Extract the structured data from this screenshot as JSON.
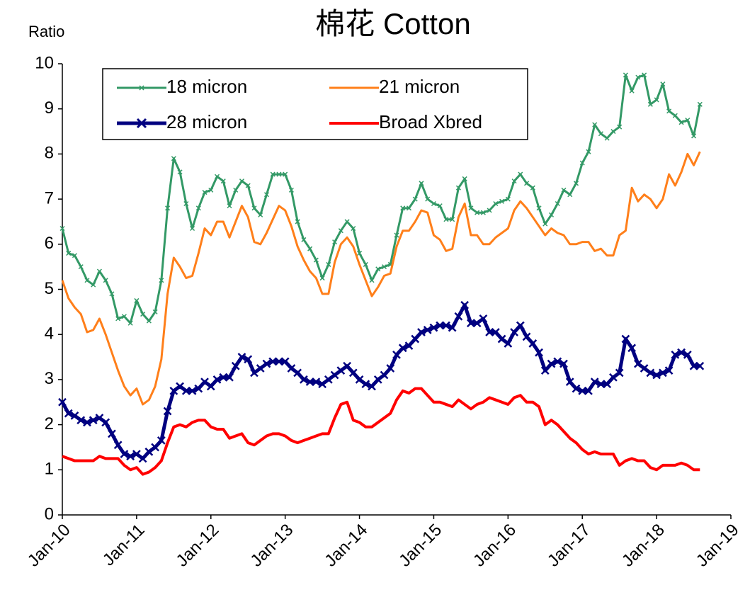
{
  "chart_data": {
    "type": "line",
    "title": "棉花 Cotton",
    "y_label": "Ratio",
    "x": [
      "2010-01",
      "2010-02",
      "2010-03",
      "2010-04",
      "2010-05",
      "2010-06",
      "2010-07",
      "2010-08",
      "2010-09",
      "2010-10",
      "2010-11",
      "2010-12",
      "2011-01",
      "2011-02",
      "2011-03",
      "2011-04",
      "2011-05",
      "2011-06",
      "2011-07",
      "2011-08",
      "2011-09",
      "2011-10",
      "2011-11",
      "2011-12",
      "2012-01",
      "2012-02",
      "2012-03",
      "2012-04",
      "2012-05",
      "2012-06",
      "2012-07",
      "2012-08",
      "2012-09",
      "2012-10",
      "2012-11",
      "2012-12",
      "2013-01",
      "2013-02",
      "2013-03",
      "2013-04",
      "2013-05",
      "2013-06",
      "2013-07",
      "2013-08",
      "2013-09",
      "2013-10",
      "2013-11",
      "2013-12",
      "2014-01",
      "2014-02",
      "2014-03",
      "2014-04",
      "2014-05",
      "2014-06",
      "2014-07",
      "2014-08",
      "2014-09",
      "2014-10",
      "2014-11",
      "2014-12",
      "2015-01",
      "2015-02",
      "2015-03",
      "2015-04",
      "2015-05",
      "2015-06",
      "2015-07",
      "2015-08",
      "2015-09",
      "2015-10",
      "2015-11",
      "2015-12",
      "2016-01",
      "2016-02",
      "2016-03",
      "2016-04",
      "2016-05",
      "2016-06",
      "2016-07",
      "2016-08",
      "2016-09",
      "2016-10",
      "2016-11",
      "2016-12",
      "2017-01",
      "2017-02",
      "2017-03",
      "2017-04",
      "2017-05",
      "2017-06",
      "2017-07",
      "2017-08",
      "2017-09",
      "2017-10",
      "2017-11",
      "2017-12",
      "2018-01",
      "2018-02",
      "2018-03",
      "2018-04",
      "2018-05",
      "2018-06",
      "2018-07",
      "2018-08"
    ],
    "series": [
      {
        "name": "18 micron",
        "color": "#339966",
        "marker": "x",
        "linewidth": 3,
        "values": [
          6.35,
          5.8,
          5.75,
          5.5,
          5.2,
          5.1,
          5.4,
          5.2,
          4.9,
          4.35,
          4.4,
          4.25,
          4.75,
          4.45,
          4.3,
          4.5,
          5.2,
          6.8,
          7.9,
          7.6,
          6.9,
          6.35,
          6.8,
          7.15,
          7.2,
          7.5,
          7.4,
          6.85,
          7.2,
          7.4,
          7.3,
          6.8,
          6.65,
          7.1,
          7.55,
          7.55,
          7.55,
          7.2,
          6.5,
          6.1,
          5.9,
          5.65,
          5.25,
          5.55,
          6.05,
          6.3,
          6.5,
          6.35,
          5.8,
          5.55,
          5.2,
          5.45,
          5.5,
          5.55,
          6.2,
          6.8,
          6.8,
          7.0,
          7.35,
          7.0,
          6.9,
          6.85,
          6.55,
          6.55,
          7.25,
          7.45,
          6.8,
          6.7,
          6.7,
          6.75,
          6.9,
          6.95,
          7.0,
          7.4,
          7.55,
          7.35,
          7.25,
          6.8,
          6.45,
          6.65,
          6.9,
          7.2,
          7.1,
          7.35,
          7.8,
          8.05,
          8.65,
          8.45,
          8.35,
          8.5,
          8.6,
          9.75,
          9.4,
          9.7,
          9.75,
          9.1,
          9.2,
          9.55,
          8.95,
          8.85,
          8.7,
          8.75,
          8.4,
          9.1
        ]
      },
      {
        "name": "21 micron",
        "color": "#ff7f1a",
        "marker": "none",
        "linewidth": 3,
        "values": [
          5.2,
          4.8,
          4.6,
          4.45,
          4.05,
          4.1,
          4.35,
          4.0,
          3.6,
          3.2,
          2.85,
          2.65,
          2.8,
          2.45,
          2.55,
          2.85,
          3.45,
          4.9,
          5.7,
          5.5,
          5.25,
          5.3,
          5.8,
          6.35,
          6.2,
          6.5,
          6.5,
          6.15,
          6.5,
          6.85,
          6.6,
          6.05,
          6.0,
          6.25,
          6.55,
          6.85,
          6.75,
          6.4,
          5.95,
          5.65,
          5.4,
          5.25,
          4.9,
          4.9,
          5.6,
          6.0,
          6.15,
          5.95,
          5.55,
          5.2,
          4.85,
          5.05,
          5.3,
          5.35,
          5.95,
          6.3,
          6.3,
          6.5,
          6.75,
          6.7,
          6.2,
          6.1,
          5.85,
          5.9,
          6.6,
          6.9,
          6.2,
          6.2,
          6.0,
          6.0,
          6.15,
          6.25,
          6.35,
          6.75,
          6.95,
          6.8,
          6.6,
          6.4,
          6.2,
          6.35,
          6.25,
          6.2,
          6.0,
          6.0,
          6.05,
          6.05,
          5.85,
          5.9,
          5.75,
          5.75,
          6.2,
          6.3,
          7.25,
          6.95,
          7.1,
          7.0,
          6.8,
          7.0,
          7.55,
          7.3,
          7.6,
          8.0,
          7.75,
          8.05
        ]
      },
      {
        "name": "28 micron",
        "color": "#000080",
        "marker": "x",
        "linewidth": 5,
        "values": [
          2.5,
          2.25,
          2.2,
          2.1,
          2.05,
          2.1,
          2.15,
          2.05,
          1.8,
          1.55,
          1.35,
          1.3,
          1.35,
          1.25,
          1.4,
          1.5,
          1.65,
          2.3,
          2.75,
          2.85,
          2.75,
          2.75,
          2.8,
          2.95,
          2.85,
          3.0,
          3.05,
          3.05,
          3.3,
          3.5,
          3.45,
          3.15,
          3.25,
          3.35,
          3.4,
          3.4,
          3.4,
          3.25,
          3.15,
          3.0,
          2.95,
          2.95,
          2.9,
          3.0,
          3.1,
          3.2,
          3.3,
          3.15,
          3.0,
          2.9,
          2.85,
          3.0,
          3.1,
          3.25,
          3.55,
          3.7,
          3.75,
          3.9,
          4.05,
          4.1,
          4.15,
          4.2,
          4.2,
          4.15,
          4.4,
          4.65,
          4.25,
          4.25,
          4.35,
          4.05,
          4.05,
          3.9,
          3.8,
          4.05,
          4.2,
          3.95,
          3.8,
          3.6,
          3.2,
          3.35,
          3.4,
          3.35,
          2.95,
          2.8,
          2.75,
          2.75,
          2.95,
          2.9,
          2.9,
          3.05,
          3.15,
          3.9,
          3.7,
          3.35,
          3.25,
          3.15,
          3.1,
          3.15,
          3.2,
          3.55,
          3.6,
          3.55,
          3.3,
          3.3
        ]
      },
      {
        "name": "Broad Xbred",
        "color": "#ff0000",
        "marker": "none",
        "linewidth": 4,
        "values": [
          1.3,
          1.25,
          1.2,
          1.2,
          1.2,
          1.2,
          1.3,
          1.25,
          1.25,
          1.25,
          1.1,
          1.0,
          1.05,
          0.9,
          0.95,
          1.05,
          1.2,
          1.6,
          1.95,
          2.0,
          1.95,
          2.05,
          2.1,
          2.1,
          1.95,
          1.9,
          1.9,
          1.7,
          1.75,
          1.8,
          1.6,
          1.55,
          1.65,
          1.75,
          1.8,
          1.8,
          1.75,
          1.65,
          1.6,
          1.65,
          1.7,
          1.75,
          1.8,
          1.8,
          2.15,
          2.45,
          2.5,
          2.1,
          2.05,
          1.95,
          1.95,
          2.05,
          2.15,
          2.25,
          2.55,
          2.75,
          2.7,
          2.8,
          2.8,
          2.65,
          2.5,
          2.5,
          2.45,
          2.4,
          2.55,
          2.45,
          2.35,
          2.45,
          2.5,
          2.6,
          2.55,
          2.5,
          2.45,
          2.6,
          2.65,
          2.5,
          2.5,
          2.4,
          2.0,
          2.1,
          2.0,
          1.85,
          1.7,
          1.6,
          1.45,
          1.35,
          1.4,
          1.35,
          1.35,
          1.35,
          1.1,
          1.2,
          1.25,
          1.2,
          1.2,
          1.05,
          1.0,
          1.1,
          1.1,
          1.1,
          1.15,
          1.1,
          1.0,
          1.0
        ]
      }
    ],
    "xlim": [
      "2010-01",
      "2019-01"
    ],
    "xticks": [
      {
        "value": "2010-01",
        "label": "Jan-10"
      },
      {
        "value": "2011-01",
        "label": "Jan-11"
      },
      {
        "value": "2012-01",
        "label": "Jan-12"
      },
      {
        "value": "2013-01",
        "label": "Jan-13"
      },
      {
        "value": "2014-01",
        "label": "Jan-14"
      },
      {
        "value": "2015-01",
        "label": "Jan-15"
      },
      {
        "value": "2016-01",
        "label": "Jan-16"
      },
      {
        "value": "2017-01",
        "label": "Jan-17"
      },
      {
        "value": "2018-01",
        "label": "Jan-18"
      },
      {
        "value": "2019-01",
        "label": "Jan-19"
      }
    ],
    "ylim": [
      0,
      10
    ],
    "yticks": [
      0,
      1,
      2,
      3,
      4,
      5,
      6,
      7,
      8,
      9,
      10
    ],
    "grid": false,
    "legend": "top-left"
  }
}
